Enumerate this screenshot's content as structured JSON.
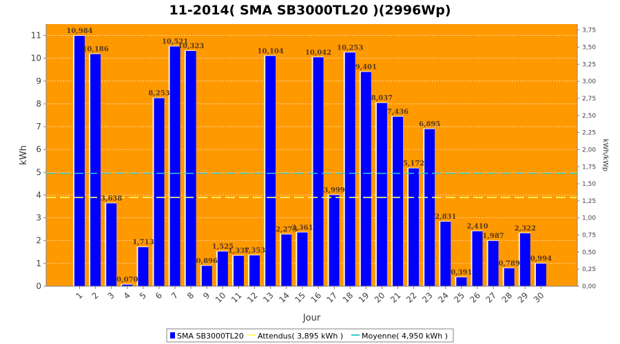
{
  "chart_data": {
    "type": "bar",
    "title": "11-2014( SMA SB3000TL20 )(2996Wp)",
    "xlabel": "Jour",
    "ylabel": "kWh",
    "ylabel_right": "kWh/kWp",
    "categories": [
      "1",
      "2",
      "3",
      "4",
      "5",
      "6",
      "7",
      "8",
      "9",
      "10",
      "11",
      "12",
      "13",
      "14",
      "15",
      "16",
      "17",
      "18",
      "19",
      "20",
      "21",
      "22",
      "23",
      "24",
      "25",
      "26",
      "27",
      "28",
      "29",
      "30"
    ],
    "series": [
      {
        "name": "SMA SB3000TL20",
        "color": "#0000ff",
        "values": [
          10.984,
          10.186,
          3.638,
          0.07,
          1.713,
          8.253,
          10.521,
          10.323,
          0.896,
          1.525,
          1.337,
          1.353,
          10.104,
          2.273,
          2.361,
          10.042,
          3.999,
          10.253,
          9.401,
          8.037,
          7.436,
          5.172,
          6.895,
          2.831,
          0.391,
          2.41,
          1.987,
          0.789,
          2.322,
          0.994
        ],
        "value_labels": [
          "10,984",
          "10,186",
          "3,638",
          "0,070",
          "1,713",
          "8,253",
          "10,521",
          "10,323",
          "0,896",
          "1,525",
          "1,337",
          "1,353",
          "10,104",
          "2,273",
          "2,361",
          "10,042",
          "3,999",
          "10,253",
          "9,401",
          "8,037",
          "7,436",
          "5,172",
          "6,895",
          "2,831",
          "0,391",
          "2,410",
          "1,987",
          "0,789",
          "2,322",
          "0,994"
        ]
      }
    ],
    "expected": {
      "label": "Attendus( 3,895 kWh )",
      "value": 3.895,
      "color": "#ffff66"
    },
    "average": {
      "label": "Moyenne( 4,950 kWh )",
      "value": 4.95,
      "color": "#33cccc"
    },
    "ylim": [
      0,
      11.5
    ],
    "yticks": [
      "0",
      "1",
      "2",
      "3",
      "4",
      "5",
      "6",
      "7",
      "8",
      "9",
      "10",
      "11"
    ],
    "ylim_right": [
      0,
      3.838
    ],
    "yticks_right": [
      "0,00",
      "0,25",
      "0,50",
      "0,75",
      "1,00",
      "1,25",
      "1,50",
      "1,75",
      "2,00",
      "2,25",
      "2,50",
      "2,75",
      "3,00",
      "3,25",
      "3,50",
      "3,75"
    ],
    "grid": true,
    "legend_position": "bottom",
    "colors": {
      "plot_background": "#ff9900",
      "grid": "#ffffff"
    }
  }
}
